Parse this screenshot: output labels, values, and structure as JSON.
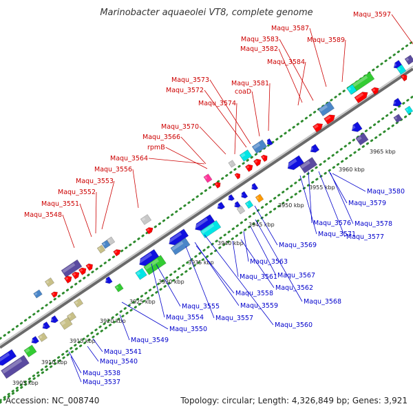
{
  "title": "Marinobacter aquaeolei VT8, complete genome",
  "accession": "Accession: NC_008740",
  "topology": "Topology: circular; Length: 4,326,849 bp; Genes: 3,921",
  "tick_labels": [
    "3905 kbp",
    "3910 kbp",
    "3915 kbp",
    "3920 kbp",
    "3925 kbp",
    "3930 kbp",
    "3935 kbp",
    "3940 kbp",
    "3945 kbp",
    "3950 kbp",
    "3955 kbp",
    "3960 kbp",
    "3965 kbp"
  ],
  "forward_labels": [
    "Maqu_3548",
    "Maqu_3551",
    "Maqu_3552",
    "Maqu_3553",
    "Maqu_3556",
    "Maqu_3564",
    "rpmB",
    "Maqu_3566",
    "Maqu_3570",
    "Maqu_3574",
    "Maqu_3572",
    "Maqu_3573",
    "coaD",
    "Maqu_3581",
    "Maqu_3584",
    "Maqu_3582",
    "Maqu_3583",
    "Maqu_3587",
    "Maqu_3589",
    "Maqu_3597"
  ],
  "reverse_labels": [
    "Maqu_3537",
    "Maqu_3538",
    "Maqu_3540",
    "Maqu_3541",
    "Maqu_3549",
    "Maqu_3550",
    "Maqu_3554",
    "Maqu_3555",
    "Maqu_3557",
    "Maqu_3558",
    "Maqu_3559",
    "Maqu_3560",
    "Maqu_3561",
    "Maqu_3562",
    "Maqu_3563",
    "Maqu_3567",
    "Maqu_3568",
    "Maqu_3569",
    "Maqu_3571",
    "Maqu_3576",
    "Maqu_3577",
    "Maqu_3578",
    "Maqu_3579",
    "Maqu_3580"
  ],
  "colors": {
    "forward_label": "#cc0000",
    "reverse_label": "#0000cc",
    "backbone": "#9a9a9a",
    "dotted_track": "#2e8b2e",
    "gene_red": "#ff0000",
    "gene_blue": "#1010e0",
    "gene_green": "#33cc33",
    "gene_navy": "#5a4aa0",
    "gene_steel": "#4a86c8",
    "gene_cyan": "#00e5e5",
    "gene_gray": "#c8c8c8",
    "gene_khaki": "#c8c088",
    "gene_orange": "#ff9900",
    "gene_pink": "#ff3399"
  }
}
